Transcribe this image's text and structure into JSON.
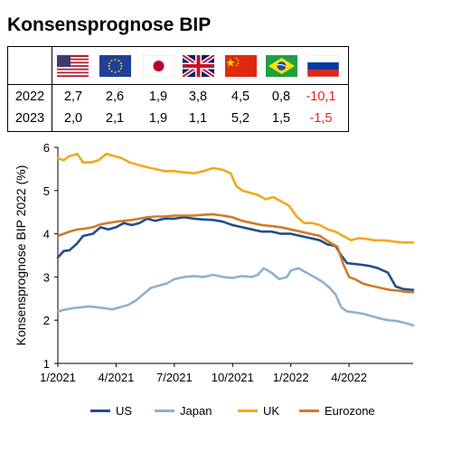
{
  "title": "Konsensprognose BIP",
  "table": {
    "flags": [
      {
        "name": "usa-flag-icon",
        "country": "US"
      },
      {
        "name": "eu-flag-icon",
        "country": "Eurozone"
      },
      {
        "name": "japan-flag-icon",
        "country": "Japan"
      },
      {
        "name": "uk-flag-icon",
        "country": "UK"
      },
      {
        "name": "china-flag-icon",
        "country": "China"
      },
      {
        "name": "brazil-flag-icon",
        "country": "Brasilien"
      },
      {
        "name": "russia-flag-icon",
        "country": "Russland"
      }
    ],
    "rows": [
      {
        "year": "2022",
        "values": [
          "2,7",
          "2,6",
          "1,9",
          "3,8",
          "4,5",
          "0,8",
          "-10,1"
        ]
      },
      {
        "year": "2023",
        "values": [
          "2,0",
          "2,1",
          "1,9",
          "1,1",
          "5,2",
          "1,5",
          "-1,5"
        ]
      }
    ],
    "negative_color": "#e8231b"
  },
  "chart_data": {
    "type": "line",
    "title": "",
    "ylabel": "Konsensprognose BIP 2022 (%)",
    "xlabel": "",
    "ylim": [
      1,
      6
    ],
    "yticks": [
      "1",
      "2",
      "3",
      "4",
      "5",
      "6"
    ],
    "x_ticks": [
      "1/2021",
      "4/2021",
      "7/2021",
      "10/2021",
      "1/2022",
      "4/2022"
    ],
    "x_tick_months": [
      0,
      3,
      6,
      9,
      12,
      15
    ],
    "x_range_months": [
      0,
      18.3
    ],
    "grid": false,
    "legend_position": "bottom",
    "series": [
      {
        "name": "US",
        "color": "#1f4e8c",
        "points": [
          [
            0,
            3.45
          ],
          [
            0.3,
            3.6
          ],
          [
            0.6,
            3.62
          ],
          [
            1.0,
            3.78
          ],
          [
            1.3,
            3.95
          ],
          [
            1.8,
            4.0
          ],
          [
            2.2,
            4.15
          ],
          [
            2.6,
            4.1
          ],
          [
            3.0,
            4.15
          ],
          [
            3.4,
            4.25
          ],
          [
            3.8,
            4.2
          ],
          [
            4.2,
            4.25
          ],
          [
            4.6,
            4.35
          ],
          [
            5.0,
            4.3
          ],
          [
            5.5,
            4.35
          ],
          [
            6.0,
            4.35
          ],
          [
            6.5,
            4.38
          ],
          [
            7.0,
            4.35
          ],
          [
            7.5,
            4.33
          ],
          [
            8.0,
            4.32
          ],
          [
            8.5,
            4.28
          ],
          [
            9.0,
            4.2
          ],
          [
            9.5,
            4.15
          ],
          [
            10.0,
            4.1
          ],
          [
            10.5,
            4.05
          ],
          [
            11.0,
            4.05
          ],
          [
            11.5,
            4.0
          ],
          [
            12.0,
            4.0
          ],
          [
            12.5,
            3.95
          ],
          [
            13.0,
            3.9
          ],
          [
            13.5,
            3.85
          ],
          [
            13.9,
            3.75
          ],
          [
            14.3,
            3.72
          ],
          [
            14.6,
            3.5
          ],
          [
            14.9,
            3.32
          ],
          [
            15.3,
            3.3
          ],
          [
            15.7,
            3.28
          ],
          [
            16.1,
            3.25
          ],
          [
            16.5,
            3.2
          ],
          [
            17.0,
            3.1
          ],
          [
            17.4,
            2.78
          ],
          [
            17.8,
            2.72
          ],
          [
            18.3,
            2.7
          ]
        ]
      },
      {
        "name": "Japan",
        "color": "#8fb0cf",
        "points": [
          [
            0,
            2.2
          ],
          [
            0.4,
            2.25
          ],
          [
            0.8,
            2.28
          ],
          [
            1.2,
            2.3
          ],
          [
            1.6,
            2.32
          ],
          [
            2.0,
            2.3
          ],
          [
            2.4,
            2.28
          ],
          [
            2.8,
            2.25
          ],
          [
            3.2,
            2.3
          ],
          [
            3.6,
            2.35
          ],
          [
            4.0,
            2.45
          ],
          [
            4.4,
            2.6
          ],
          [
            4.8,
            2.75
          ],
          [
            5.2,
            2.8
          ],
          [
            5.6,
            2.85
          ],
          [
            6.0,
            2.95
          ],
          [
            6.5,
            3.0
          ],
          [
            7.0,
            3.02
          ],
          [
            7.5,
            3.0
          ],
          [
            8.0,
            3.05
          ],
          [
            8.5,
            3.0
          ],
          [
            9.0,
            2.98
          ],
          [
            9.5,
            3.02
          ],
          [
            10.0,
            3.0
          ],
          [
            10.3,
            3.05
          ],
          [
            10.6,
            3.2
          ],
          [
            11.0,
            3.1
          ],
          [
            11.4,
            2.95
          ],
          [
            11.8,
            3.0
          ],
          [
            12.0,
            3.15
          ],
          [
            12.4,
            3.2
          ],
          [
            12.8,
            3.1
          ],
          [
            13.2,
            3.0
          ],
          [
            13.6,
            2.9
          ],
          [
            14.0,
            2.75
          ],
          [
            14.3,
            2.6
          ],
          [
            14.6,
            2.3
          ],
          [
            14.9,
            2.2
          ],
          [
            15.3,
            2.18
          ],
          [
            15.7,
            2.15
          ],
          [
            16.1,
            2.1
          ],
          [
            16.5,
            2.05
          ],
          [
            17.0,
            2.0
          ],
          [
            17.5,
            1.98
          ],
          [
            18.0,
            1.92
          ],
          [
            18.3,
            1.88
          ]
        ]
      },
      {
        "name": "UK",
        "color": "#f2a81d",
        "points": [
          [
            0,
            5.75
          ],
          [
            0.3,
            5.7
          ],
          [
            0.6,
            5.8
          ],
          [
            1.0,
            5.85
          ],
          [
            1.3,
            5.65
          ],
          [
            1.7,
            5.65
          ],
          [
            2.1,
            5.7
          ],
          [
            2.5,
            5.85
          ],
          [
            2.9,
            5.8
          ],
          [
            3.3,
            5.75
          ],
          [
            3.7,
            5.65
          ],
          [
            4.1,
            5.6
          ],
          [
            4.5,
            5.55
          ],
          [
            5.0,
            5.5
          ],
          [
            5.5,
            5.45
          ],
          [
            6.0,
            5.45
          ],
          [
            6.5,
            5.42
          ],
          [
            7.0,
            5.4
          ],
          [
            7.5,
            5.45
          ],
          [
            8.0,
            5.52
          ],
          [
            8.5,
            5.48
          ],
          [
            8.9,
            5.4
          ],
          [
            9.2,
            5.1
          ],
          [
            9.5,
            5.0
          ],
          [
            9.9,
            4.95
          ],
          [
            10.3,
            4.9
          ],
          [
            10.7,
            4.8
          ],
          [
            11.1,
            4.85
          ],
          [
            11.5,
            4.75
          ],
          [
            11.9,
            4.65
          ],
          [
            12.3,
            4.4
          ],
          [
            12.7,
            4.25
          ],
          [
            13.1,
            4.25
          ],
          [
            13.5,
            4.2
          ],
          [
            13.9,
            4.1
          ],
          [
            14.3,
            4.05
          ],
          [
            14.7,
            3.95
          ],
          [
            15.1,
            3.85
          ],
          [
            15.5,
            3.9
          ],
          [
            15.9,
            3.88
          ],
          [
            16.3,
            3.85
          ],
          [
            16.8,
            3.85
          ],
          [
            17.3,
            3.82
          ],
          [
            17.8,
            3.8
          ],
          [
            18.3,
            3.8
          ]
        ]
      },
      {
        "name": "Eurozone",
        "color": "#d07a26",
        "points": [
          [
            0,
            3.95
          ],
          [
            0.3,
            4.0
          ],
          [
            0.6,
            4.05
          ],
          [
            1.0,
            4.1
          ],
          [
            1.4,
            4.12
          ],
          [
            1.8,
            4.15
          ],
          [
            2.2,
            4.22
          ],
          [
            2.6,
            4.25
          ],
          [
            3.0,
            4.28
          ],
          [
            3.4,
            4.3
          ],
          [
            3.8,
            4.32
          ],
          [
            4.2,
            4.35
          ],
          [
            4.6,
            4.38
          ],
          [
            5.0,
            4.4
          ],
          [
            5.5,
            4.4
          ],
          [
            6.0,
            4.42
          ],
          [
            6.5,
            4.42
          ],
          [
            7.0,
            4.42
          ],
          [
            7.5,
            4.44
          ],
          [
            8.0,
            4.45
          ],
          [
            8.5,
            4.42
          ],
          [
            9.0,
            4.38
          ],
          [
            9.5,
            4.3
          ],
          [
            10.0,
            4.25
          ],
          [
            10.5,
            4.2
          ],
          [
            11.0,
            4.18
          ],
          [
            11.5,
            4.15
          ],
          [
            12.0,
            4.1
          ],
          [
            12.5,
            4.05
          ],
          [
            13.0,
            4.0
          ],
          [
            13.5,
            3.95
          ],
          [
            14.0,
            3.8
          ],
          [
            14.4,
            3.7
          ],
          [
            14.7,
            3.3
          ],
          [
            15.0,
            3.0
          ],
          [
            15.3,
            2.95
          ],
          [
            15.7,
            2.85
          ],
          [
            16.1,
            2.8
          ],
          [
            16.6,
            2.75
          ],
          [
            17.1,
            2.7
          ],
          [
            17.6,
            2.68
          ],
          [
            18.0,
            2.65
          ],
          [
            18.3,
            2.65
          ]
        ]
      }
    ]
  }
}
